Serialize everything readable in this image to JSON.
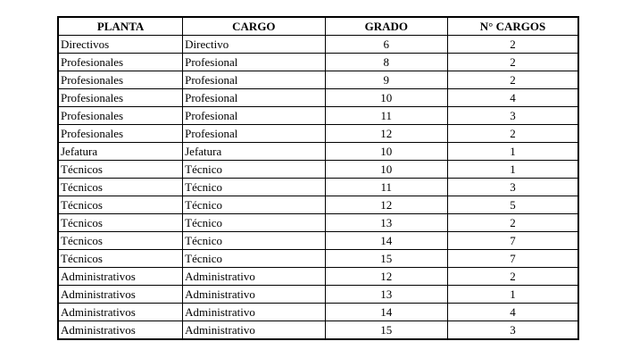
{
  "table": {
    "header": [
      "PLANTA",
      "CARGO",
      "GRADO",
      "N° CARGOS"
    ],
    "rows": [
      [
        "Directivos",
        "Directivo",
        6,
        2
      ],
      [
        "Profesionales",
        "Profesional",
        8,
        2
      ],
      [
        "Profesionales",
        "Profesional",
        9,
        2
      ],
      [
        "Profesionales",
        "Profesional",
        10,
        4
      ],
      [
        "Profesionales",
        "Profesional",
        11,
        3
      ],
      [
        "Profesionales",
        "Profesional",
        12,
        2
      ],
      [
        "Jefatura",
        "Jefatura",
        10,
        1
      ],
      [
        "Técnicos",
        "Técnico",
        10,
        1
      ],
      [
        "Técnicos",
        "Técnico",
        11,
        3
      ],
      [
        "Técnicos",
        "Técnico",
        12,
        5
      ],
      [
        "Técnicos",
        "Técnico",
        13,
        2
      ],
      [
        "Técnicos",
        "Técnico",
        14,
        7
      ],
      [
        "Técnicos",
        "Técnico",
        15,
        7
      ],
      [
        "Administrativos",
        "Administrativo",
        12,
        2
      ],
      [
        "Administrativos",
        "Administrativo",
        13,
        1
      ],
      [
        "Administrativos",
        "Administrativo",
        14,
        4
      ],
      [
        "Administrativos",
        "Administrativo",
        15,
        3
      ]
    ]
  }
}
